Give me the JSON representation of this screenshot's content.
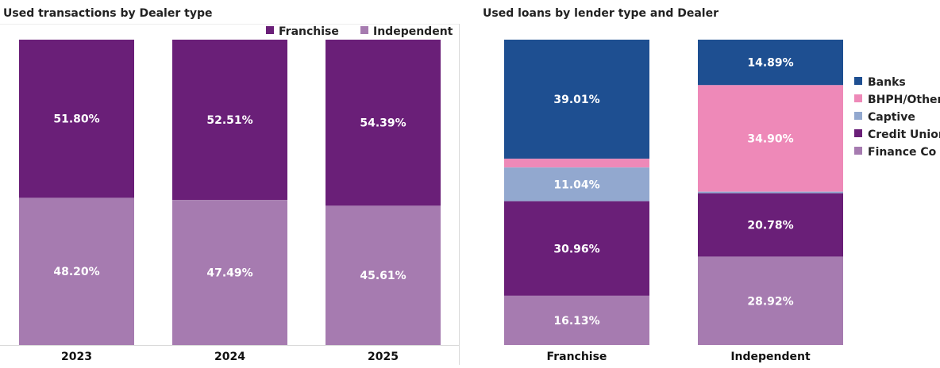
{
  "chart_data": [
    {
      "type": "bar",
      "stacked": true,
      "title": "Used transactions by Dealer type",
      "categories": [
        "2023",
        "2024",
        "2025"
      ],
      "series": [
        {
          "name": "Franchise",
          "values": [
            51.8,
            52.51,
            54.39
          ],
          "labels": [
            "51.80%",
            "52.51%",
            "54.39%"
          ],
          "color": "#6a1f78"
        },
        {
          "name": "Independent",
          "values": [
            48.2,
            47.49,
            45.61
          ],
          "labels": [
            "48.20%",
            "47.49%",
            "45.61%"
          ],
          "color": "#a67bb0"
        }
      ],
      "ylim": [
        0,
        100
      ],
      "legend": "top-right",
      "grid": false
    },
    {
      "type": "bar",
      "stacked": true,
      "title": "Used loans by lender type and Dealer",
      "categories": [
        "Franchise",
        "Independent"
      ],
      "series": [
        {
          "name": "Banks",
          "values": [
            39.01,
            14.89
          ],
          "labels": [
            "39.01%",
            "14.89%"
          ],
          "color": "#1e4f91"
        },
        {
          "name": "BHPH/Other",
          "values": [
            2.86,
            34.9
          ],
          "labels": [
            "",
            "34.90%"
          ],
          "color": "#ee89b8"
        },
        {
          "name": "Captive",
          "values": [
            11.04,
            0.51
          ],
          "labels": [
            "11.04%",
            ""
          ],
          "color": "#92a8cf"
        },
        {
          "name": "Credit Union",
          "values": [
            30.96,
            20.78
          ],
          "labels": [
            "30.96%",
            "20.78%"
          ],
          "color": "#6a1f78"
        },
        {
          "name": "Finance Co",
          "values": [
            16.13,
            28.92
          ],
          "labels": [
            "16.13%",
            "28.92%"
          ],
          "color": "#a67bb0"
        }
      ],
      "ylim": [
        0,
        100
      ],
      "legend": "right",
      "grid": false
    }
  ]
}
